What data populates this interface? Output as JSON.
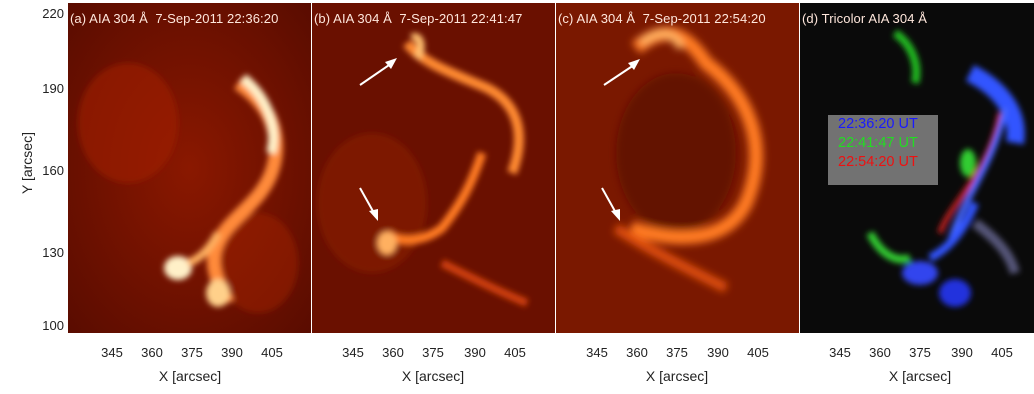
{
  "figure": {
    "panels": [
      {
        "title": "(a) AIA 304 Å  7-Sep-2011 22:36:20"
      },
      {
        "title": "(b) AIA 304 Å  7-Sep-2011 22:41:47"
      },
      {
        "title": "(c) AIA 304 Å  7-Sep-2011 22:54:20"
      },
      {
        "title": "(d) Tricolor AIA 304 Å"
      }
    ],
    "y_ticks": [
      "220",
      "190",
      "160",
      "130",
      "100"
    ],
    "x_ticks": [
      "345",
      "360",
      "375",
      "390",
      "405"
    ],
    "x_label": "X [arcsec]",
    "y_label": "Y [arcsec]",
    "legend": [
      {
        "text": "22:36:20 UT",
        "color": "#1a1aff"
      },
      {
        "text": "22:41:47 UT",
        "color": "#22dd22"
      },
      {
        "text": "22:54:20 UT",
        "color": "#ee1111"
      }
    ]
  }
}
